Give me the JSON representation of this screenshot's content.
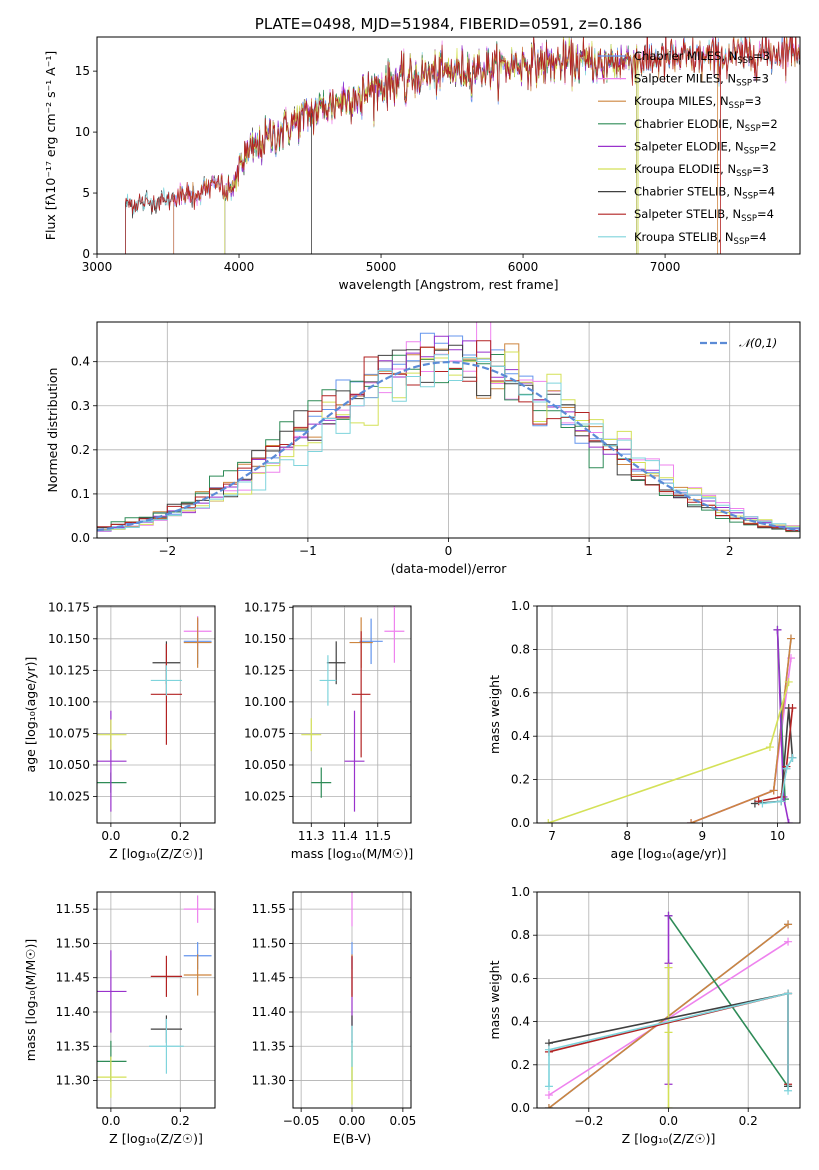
{
  "colors": {
    "Chabrier MILES": "#6495ed",
    "Salpeter MILES": "#ee82ee",
    "Kroupa MILES": "#cd853f",
    "Chabrier ELODIE": "#2e8b57",
    "Salpeter ELODIE": "#9932cc",
    "Kroupa ELODIE": "#d4e157",
    "Chabrier STELIB": "#404040",
    "Salpeter STELIB": "#b22222",
    "Kroupa STELIB": "#7fd4dc"
  },
  "chart_data": [
    {
      "id": "spectrum",
      "type": "line",
      "title": "PLATE=0498, MJD=51984, FIBERID=0591, z=0.186",
      "xlabel": "wavelength [Angstrom, rest frame]",
      "ylabel": "Flux [fλ10⁻¹⁷ erg cm⁻² s⁻¹ A⁻¹]",
      "xlim": [
        3000,
        7950
      ],
      "ylim": [
        0,
        17.8
      ],
      "xticks": [
        "3000",
        "4000",
        "5000",
        "6000",
        "7000"
      ],
      "yticks": [
        "0",
        "5",
        "10",
        "15"
      ],
      "grid": false,
      "legend_position": "lower right",
      "legend": [
        "Chabrier MILES, N_SSP=3",
        "Salpeter MILES, N_SSP=3",
        "Kroupa MILES, N_SSP=3",
        "Chabrier ELODIE, N_SSP=2",
        "Salpeter ELODIE, N_SSP=2",
        "Kroupa ELODIE, N_SSP=3",
        "Chabrier STELIB, N_SSP=4",
        "Salpeter STELIB, N_SSP=4",
        "Kroupa STELIB, N_SSP=4"
      ],
      "continuum_anchors": {
        "x": [
          3200,
          3300,
          3500,
          3700,
          3900,
          4000,
          4200,
          4500,
          4800,
          5000,
          5200,
          5500,
          5800,
          6000,
          6300,
          6600,
          6800,
          7000,
          7200,
          7500,
          7800,
          7950
        ],
        "y": [
          4.0,
          4.2,
          4.5,
          5.0,
          6.0,
          7.5,
          9.5,
          11.5,
          13.0,
          13.8,
          14.5,
          15.0,
          15.3,
          15.6,
          15.7,
          15.8,
          15.9,
          16.0,
          16.0,
          16.2,
          16.6,
          17.0
        ]
      },
      "model_start_wavelength": {
        "Chabrier MILES": 3540,
        "Salpeter MILES": 3540,
        "Kroupa MILES": 3540,
        "Chabrier ELODIE": 3900,
        "Salpeter ELODIE": 3900,
        "Kroupa ELODIE": 3900,
        "Chabrier STELIB": 3200,
        "Salpeter STELIB": 3200,
        "Kroupa STELIB": 3200
      },
      "model_end_wavelength": {
        "Chabrier MILES": 7950,
        "Salpeter MILES": 7950,
        "Kroupa MILES": 7950,
        "Chabrier ELODIE": 6800,
        "Salpeter ELODIE": 6800,
        "Kroupa ELODIE": 6800,
        "Chabrier STELIB": 7950,
        "Salpeter STELIB": 7950,
        "Kroupa STELIB": 7950
      }
    },
    {
      "id": "residuals",
      "type": "histogram",
      "xlabel": "(data-model)/error",
      "ylabel": "Normed distribution",
      "xlim": [
        -2.5,
        2.5
      ],
      "ylim": [
        0,
        0.49
      ],
      "xticks": [
        -2,
        -1,
        0,
        1,
        2
      ],
      "yticks": [
        0.0,
        0.1,
        0.2,
        0.3,
        0.4
      ],
      "grid": true,
      "legend_position": "upper right",
      "reference_label": "𝒩(0,1)",
      "reference_color": "#5b8bd6",
      "bin_width": 0.1
    },
    {
      "id": "age-vs-Z",
      "type": "errorbar",
      "xlabel": "Z [log₁₀(Z/Z☉)]",
      "ylabel": "age  [log₁₀(age/yr)]",
      "xlim": [
        -0.04,
        0.3
      ],
      "ylim": [
        10.004,
        10.176
      ],
      "xticks": [
        0.0,
        0.2
      ],
      "yticks": [
        10.025,
        10.05,
        10.075,
        10.1,
        10.125,
        10.15,
        10.175
      ],
      "grid": true,
      "points": [
        {
          "name": "Chabrier MILES",
          "x": 0.25,
          "y": 10.148,
          "xerr": 0.04,
          "yerr": 0.018
        },
        {
          "name": "Salpeter MILES",
          "x": 0.25,
          "y": 10.156,
          "xerr": 0.04,
          "yerr": 0.012
        },
        {
          "name": "Kroupa MILES",
          "x": 0.25,
          "y": 10.147,
          "xerr": 0.04,
          "yerr": 0.02
        },
        {
          "name": "Chabrier ELODIE",
          "x": 0.0,
          "y": 10.036,
          "xerr": 0.045,
          "yerr": 0.008
        },
        {
          "name": "Salpeter ELODIE",
          "x": 0.0,
          "y": 10.053,
          "xerr": 0.045,
          "yerr": 0.04
        },
        {
          "name": "Kroupa ELODIE",
          "x": 0.0,
          "y": 10.074,
          "xerr": 0.045,
          "yerr": 0.012
        },
        {
          "name": "Chabrier STELIB",
          "x": 0.16,
          "y": 10.131,
          "xerr": 0.04,
          "yerr": 0.017
        },
        {
          "name": "Salpeter STELIB",
          "x": 0.16,
          "y": 10.106,
          "xerr": 0.045,
          "yerr": 0.04
        },
        {
          "name": "Kroupa STELIB",
          "x": 0.16,
          "y": 10.117,
          "xerr": 0.045,
          "yerr": 0.012
        }
      ]
    },
    {
      "id": "age-vs-mass",
      "type": "errorbar",
      "xlabel": "mass [log₁₀(M/M☉)]",
      "ylabel": "",
      "xlim": [
        11.245,
        11.6
      ],
      "ylim": [
        10.004,
        10.176
      ],
      "xticks": [
        11.3,
        11.4,
        11.5
      ],
      "yticks": [
        10.025,
        10.05,
        10.075,
        10.1,
        10.125,
        10.15,
        10.175
      ],
      "grid": true,
      "points": [
        {
          "name": "Chabrier MILES",
          "x": 11.48,
          "y": 10.148,
          "xerr": 0.035,
          "yerr": 0.018
        },
        {
          "name": "Salpeter MILES",
          "x": 11.55,
          "y": 10.156,
          "xerr": 0.03,
          "yerr": 0.025
        },
        {
          "name": "Kroupa MILES",
          "x": 11.45,
          "y": 10.147,
          "xerr": 0.035,
          "yerr": 0.02
        },
        {
          "name": "Chabrier ELODIE",
          "x": 11.33,
          "y": 10.036,
          "xerr": 0.03,
          "yerr": 0.012
        },
        {
          "name": "Salpeter ELODIE",
          "x": 11.43,
          "y": 10.053,
          "xerr": 0.03,
          "yerr": 0.04
        },
        {
          "name": "Kroupa ELODIE",
          "x": 11.3,
          "y": 10.074,
          "xerr": 0.03,
          "yerr": 0.013
        },
        {
          "name": "Chabrier STELIB",
          "x": 11.375,
          "y": 10.131,
          "xerr": 0.028,
          "yerr": 0.017
        },
        {
          "name": "Salpeter STELIB",
          "x": 11.45,
          "y": 10.106,
          "xerr": 0.028,
          "yerr": 0.05
        },
        {
          "name": "Kroupa STELIB",
          "x": 11.35,
          "y": 10.117,
          "xerr": 0.025,
          "yerr": 0.02
        }
      ]
    },
    {
      "id": "weight-vs-age",
      "type": "line",
      "xlabel": "age  [log₁₀(age/yr)]",
      "ylabel": "mass weight",
      "xlim": [
        6.8,
        10.3
      ],
      "ylim": [
        0,
        1.0
      ],
      "xticks": [
        7,
        8,
        9,
        10
      ],
      "yticks": [
        0.0,
        0.2,
        0.4,
        0.6,
        0.8,
        1.0
      ],
      "grid": true,
      "series": [
        {
          "name": "Chabrier MILES",
          "x": [
            8.85,
            9.95,
            10.18
          ],
          "y": [
            0.0,
            0.15,
            0.85
          ]
        },
        {
          "name": "Salpeter MILES",
          "x": [
            8.85,
            9.95,
            10.18
          ],
          "y": [
            0.0,
            0.15,
            0.76
          ]
        },
        {
          "name": "Kroupa MILES",
          "x": [
            8.85,
            9.95,
            10.18
          ],
          "y": [
            0.0,
            0.15,
            0.85
          ]
        },
        {
          "name": "Chabrier ELODIE",
          "x": [
            10.0,
            10.1
          ],
          "y": [
            0.89,
            0.11
          ]
        },
        {
          "name": "Salpeter ELODIE",
          "x": [
            10.0,
            10.08,
            10.15
          ],
          "y": [
            0.89,
            0.12,
            0.0
          ]
        },
        {
          "name": "Kroupa ELODIE",
          "x": [
            6.95,
            9.9,
            10.15
          ],
          "y": [
            0.0,
            0.35,
            0.65
          ]
        },
        {
          "name": "Chabrier STELIB",
          "x": [
            9.7,
            10.05,
            10.15,
            10.2
          ],
          "y": [
            0.09,
            0.1,
            0.53,
            0.3
          ]
        },
        {
          "name": "Salpeter STELIB",
          "x": [
            9.75,
            10.05,
            10.12,
            10.2
          ],
          "y": [
            0.1,
            0.12,
            0.26,
            0.53
          ]
        },
        {
          "name": "Kroupa STELIB",
          "x": [
            9.8,
            10.05,
            10.12,
            10.2
          ],
          "y": [
            0.09,
            0.1,
            0.25,
            0.3
          ]
        }
      ]
    },
    {
      "id": "mass-vs-Z",
      "type": "errorbar",
      "xlabel": "Z [log₁₀(Z/Z☉)]",
      "ylabel": "mass [log₁₀(M/M☉)]",
      "xlim": [
        -0.04,
        0.3
      ],
      "ylim": [
        11.26,
        11.575
      ],
      "xticks": [
        0.0,
        0.2
      ],
      "yticks": [
        11.3,
        11.35,
        11.4,
        11.45,
        11.5,
        11.55
      ],
      "grid": true,
      "points": [
        {
          "name": "Chabrier MILES",
          "x": 0.25,
          "y": 11.482,
          "xerr": 0.04,
          "yerr": 0.02
        },
        {
          "name": "Salpeter MILES",
          "x": 0.25,
          "y": 11.55,
          "xerr": 0.04,
          "yerr": 0.02
        },
        {
          "name": "Kroupa MILES",
          "x": 0.25,
          "y": 11.454,
          "xerr": 0.04,
          "yerr": 0.03
        },
        {
          "name": "Chabrier ELODIE",
          "x": 0.0,
          "y": 11.328,
          "xerr": 0.045,
          "yerr": 0.03
        },
        {
          "name": "Salpeter ELODIE",
          "x": 0.0,
          "y": 11.43,
          "xerr": 0.045,
          "yerr": 0.06
        },
        {
          "name": "Kroupa ELODIE",
          "x": 0.0,
          "y": 11.305,
          "xerr": 0.045,
          "yerr": 0.03
        },
        {
          "name": "Chabrier STELIB",
          "x": 0.16,
          "y": 11.375,
          "xerr": 0.045,
          "yerr": 0.02
        },
        {
          "name": "Salpeter STELIB",
          "x": 0.16,
          "y": 11.452,
          "xerr": 0.045,
          "yerr": 0.03
        },
        {
          "name": "Kroupa STELIB",
          "x": 0.16,
          "y": 11.35,
          "xerr": 0.05,
          "yerr": 0.04
        }
      ]
    },
    {
      "id": "mass-vs-ebv",
      "type": "errorbar",
      "xlabel": "E(B-V)",
      "ylabel": "",
      "xlim": [
        -0.058,
        0.058
      ],
      "ylim": [
        11.26,
        11.575
      ],
      "xticks": [
        -0.05,
        0.0,
        0.05
      ],
      "yticks": [
        11.3,
        11.35,
        11.4,
        11.45,
        11.5,
        11.55
      ],
      "grid": true,
      "points": [
        {
          "name": "Chabrier MILES",
          "x": 0.0,
          "y": 11.482,
          "xerr": 0,
          "yerr": 0.02
        },
        {
          "name": "Salpeter MILES",
          "x": 0.0,
          "y": 11.55,
          "xerr": 0,
          "yerr": 0.025
        },
        {
          "name": "Kroupa MILES",
          "x": 0.0,
          "y": 11.454,
          "xerr": 0,
          "yerr": 0.03
        },
        {
          "name": "Chabrier ELODIE",
          "x": 0.0,
          "y": 11.328,
          "xerr": 0,
          "yerr": 0.03
        },
        {
          "name": "Salpeter ELODIE",
          "x": 0.0,
          "y": 11.43,
          "xerr": 0,
          "yerr": 0.05
        },
        {
          "name": "Kroupa ELODIE",
          "x": 0.0,
          "y": 11.305,
          "xerr": 0,
          "yerr": 0.04
        },
        {
          "name": "Chabrier STELIB",
          "x": 0.0,
          "y": 11.375,
          "xerr": 0,
          "yerr": 0.02
        },
        {
          "name": "Salpeter STELIB",
          "x": 0.0,
          "y": 11.452,
          "xerr": 0,
          "yerr": 0.03
        },
        {
          "name": "Kroupa STELIB",
          "x": 0.0,
          "y": 11.35,
          "xerr": 0,
          "yerr": 0.03
        }
      ]
    },
    {
      "id": "weight-vs-Z",
      "type": "line",
      "xlabel": "Z [log₁₀(Z/Z☉)]",
      "ylabel": "mass weight",
      "xlim": [
        -0.33,
        0.33
      ],
      "ylim": [
        0,
        1.0
      ],
      "xticks": [
        -0.2,
        0.0,
        0.2
      ],
      "yticks": [
        0.0,
        0.2,
        0.4,
        0.6,
        0.8,
        1.0
      ],
      "grid": true,
      "series": [
        {
          "name": "Chabrier MILES",
          "x": [
            -0.3,
            0.3
          ],
          "y": [
            0.0,
            0.85
          ]
        },
        {
          "name": "Salpeter MILES",
          "x": [
            -0.3,
            0.3
          ],
          "y": [
            0.06,
            0.77
          ]
        },
        {
          "name": "Kroupa MILES",
          "x": [
            -0.3,
            0.3
          ],
          "y": [
            0.0,
            0.85
          ]
        },
        {
          "name": "Chabrier ELODIE",
          "x": [
            0.0,
            0.3
          ],
          "y": [
            0.89,
            0.1
          ]
        },
        {
          "name": "Salpeter ELODIE",
          "x": [
            0.0,
            0.0,
            0.0
          ],
          "y": [
            0.89,
            0.67,
            0.11
          ]
        },
        {
          "name": "Kroupa ELODIE",
          "x": [
            0.0,
            0.0,
            0.0
          ],
          "y": [
            0.65,
            0.35,
            0.0
          ]
        },
        {
          "name": "Chabrier STELIB",
          "x": [
            -0.3,
            0.3,
            0.3
          ],
          "y": [
            0.3,
            0.53,
            0.1
          ]
        },
        {
          "name": "Salpeter STELIB",
          "x": [
            -0.3,
            0.3,
            0.3
          ],
          "y": [
            0.26,
            0.53,
            0.11
          ]
        },
        {
          "name": "Kroupa STELIB",
          "x": [
            -0.3,
            -0.3,
            0.3,
            0.3
          ],
          "y": [
            0.1,
            0.27,
            0.53,
            0.08
          ]
        }
      ]
    }
  ]
}
